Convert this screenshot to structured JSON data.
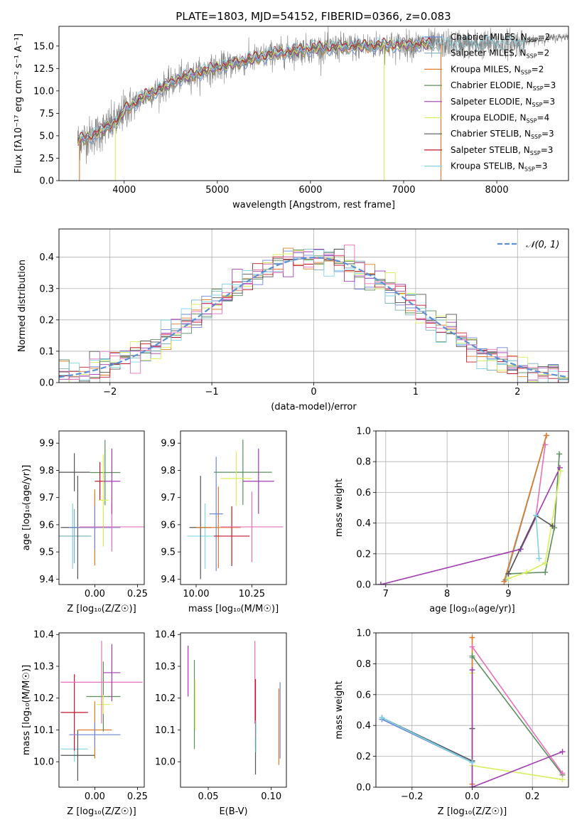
{
  "colors": {
    "Chabrier MILES": "#6f86d6",
    "Salpeter MILES": "#7fb0bd",
    "Kroupa MILES": "#e07b28",
    "Chabrier ELODIE": "#5a8f5c",
    "Salpeter ELODIE": "#a03ab0",
    "Kroupa ELODIE": "#d8ee5c",
    "Chabrier STELIB": "#555555",
    "Salpeter STELIB": "#c0182a",
    "Kroupa STELIB": "#7fd4e6",
    "pink": "#e870b8",
    "gray_spectrum": "#7f7f7f",
    "normal_curve": "#5b8fd6"
  },
  "chart_data": [
    {
      "id": "spectrum",
      "type": "line",
      "title": "PLATE=1803, MJD=54152, FIBERID=0366, z=0.083",
      "xlabel": "wavelength [Angstrom, rest frame]",
      "ylabel": "Flux [fλ10⁻¹⁷ erg cm⁻² s⁻¹ A⁻¹]",
      "xlim": [
        3300,
        8770
      ],
      "ylim": [
        0,
        17.2
      ],
      "xticks": [
        4000,
        5000,
        6000,
        7000,
        8000
      ],
      "yticks": [
        0.0,
        2.5,
        5.0,
        7.5,
        10.0,
        12.5,
        15.0
      ],
      "grid": false,
      "legend_position": "upper-right",
      "legend": [
        {
          "label": "Chabrier MILES, N",
          "sub": "SSP",
          "eq": "=2",
          "color": "#6f86d6"
        },
        {
          "label": "Salpeter MILES, N",
          "sub": "SSP",
          "eq": "=2",
          "color": "#7fb0bd"
        },
        {
          "label": "Kroupa MILES, N",
          "sub": "SSP",
          "eq": "=2",
          "color": "#e07b28"
        },
        {
          "label": "Chabrier ELODIE, N",
          "sub": "SSP",
          "eq": "=3",
          "color": "#5a8f5c"
        },
        {
          "label": "Salpeter ELODIE, N",
          "sub": "SSP",
          "eq": "=3",
          "color": "#a03ab0"
        },
        {
          "label": "Kroupa ELODIE, N",
          "sub": "SSP",
          "eq": "=4",
          "color": "#d8ee5c"
        },
        {
          "label": "Chabrier STELIB, N",
          "sub": "SSP",
          "eq": "=3",
          "color": "#555555"
        },
        {
          "label": "Salpeter STELIB, N",
          "sub": "SSP",
          "eq": "=3",
          "color": "#c0182a"
        },
        {
          "label": "Kroupa STELIB, N",
          "sub": "SSP",
          "eq": "=3",
          "color": "#7fd4e6"
        }
      ],
      "continuum": [
        [
          3500,
          4.5
        ],
        [
          3600,
          4.8
        ],
        [
          3700,
          5.2
        ],
        [
          3800,
          5.8
        ],
        [
          3900,
          6.5
        ],
        [
          3950,
          6.8
        ],
        [
          4000,
          7.9
        ],
        [
          4100,
          8.5
        ],
        [
          4200,
          9.3
        ],
        [
          4400,
          10.3
        ],
        [
          4600,
          11.4
        ],
        [
          4800,
          12.0
        ],
        [
          5000,
          12.6
        ],
        [
          5200,
          13.1
        ],
        [
          5400,
          13.6
        ],
        [
          5600,
          14.1
        ],
        [
          5800,
          14.4
        ],
        [
          6000,
          14.7
        ],
        [
          6200,
          14.8
        ],
        [
          6400,
          14.9
        ],
        [
          6600,
          15.0
        ],
        [
          6800,
          15.1
        ],
        [
          7000,
          15.1
        ],
        [
          7200,
          15.2
        ],
        [
          7400,
          15.2
        ],
        [
          7600,
          15.3
        ],
        [
          7800,
          15.2
        ],
        [
          8000,
          15.3
        ],
        [
          8200,
          15.4
        ],
        [
          8400,
          15.6
        ],
        [
          8600,
          15.9
        ],
        [
          8770,
          16.1
        ]
      ],
      "dips": [
        [
          3520,
          0
        ],
        [
          3905,
          0
        ],
        [
          6790,
          0
        ],
        [
          7400,
          0
        ]
      ]
    },
    {
      "id": "residuals",
      "type": "step",
      "xlabel": "(data-model)/error",
      "ylabel": "Normed distribution",
      "xlim": [
        -2.5,
        2.5
      ],
      "ylim": [
        0,
        0.49
      ],
      "xticks": [
        -2,
        -1,
        0,
        1,
        2
      ],
      "xticklabels": [
        "−2",
        "−1",
        "0",
        "1",
        "2"
      ],
      "yticks": [
        0.0,
        0.1,
        0.2,
        0.3,
        0.4
      ],
      "grid": true,
      "legend": [
        {
          "label": "𝒩(0, 1)",
          "color": "#5b8fd6",
          "style": "dashed"
        }
      ],
      "bin_width": 0.1,
      "series_note": "9 model histograms scattered around N(0,1)"
    },
    {
      "id": "age_vs_Z",
      "type": "errorbar",
      "xlabel": "Z [log₁₀(Z/Z☉)]",
      "ylabel": "age  [log₁₀(age/yr)]",
      "xlim": [
        -0.21,
        0.29
      ],
      "ylim": [
        9.38,
        9.945
      ],
      "xticks": [
        0.0,
        0.25
      ],
      "xticklabels": [
        "0.00",
        "0.25"
      ],
      "yticks": [
        9.4,
        9.5,
        9.6,
        9.7,
        9.8,
        9.9
      ],
      "points": [
        {
          "x": -0.13,
          "y": 9.558,
          "xerr": 0.09,
          "yerr": 0.12,
          "c": "#7fd4e6"
        },
        {
          "x": -0.12,
          "y": 9.558,
          "xerr": 0.1,
          "yerr": 0.1,
          "c": "#7fb0bd"
        },
        {
          "x": -0.1,
          "y": 9.59,
          "xerr": 0.1,
          "yerr": 0.19,
          "c": "#555555"
        },
        {
          "x": -0.12,
          "y": 9.793,
          "xerr": 0.09,
          "yerr": 0.07,
          "c": "#555555"
        },
        {
          "x": 0.0,
          "y": 9.59,
          "xerr": 0.1,
          "yerr": 0.14,
          "c": "#e07b28"
        },
        {
          "x": 0.0,
          "y": 9.59,
          "xerr": 0.15,
          "yerr": 0.08,
          "c": "#6f86d6"
        },
        {
          "x": 0.06,
          "y": 9.792,
          "xerr": 0.09,
          "yerr": 0.12,
          "c": "#5a8f5c"
        },
        {
          "x": 0.03,
          "y": 9.76,
          "xerr": 0.03,
          "yerr": 0.07,
          "c": "#c0182a"
        },
        {
          "x": 0.05,
          "y": 9.69,
          "xerr": 0.03,
          "yerr": 0.17,
          "c": "#d8ee5c"
        },
        {
          "x": 0.1,
          "y": 9.592,
          "xerr": 0.19,
          "yerr": 0.09,
          "c": "#e870b8"
        },
        {
          "x": 0.1,
          "y": 9.76,
          "xerr": 0.05,
          "yerr": 0.12,
          "c": "#a03ab0"
        }
      ]
    },
    {
      "id": "age_vs_mass",
      "type": "errorbar",
      "xlabel": "mass [log₁₀(M/M☉)]",
      "ylabel": "",
      "xlim": [
        9.93,
        10.405
      ],
      "ylim": [
        9.38,
        9.945
      ],
      "xticks": [
        10.0,
        10.25
      ],
      "xticklabels": [
        "10.00",
        "10.25"
      ],
      "yticks": [
        9.4,
        9.5,
        9.6,
        9.7,
        9.8,
        9.9
      ],
      "points": [
        {
          "x": 10.04,
          "y": 9.558,
          "xerr": 0.08,
          "yerr": 0.12,
          "c": "#7fd4e6"
        },
        {
          "x": 10.02,
          "y": 9.59,
          "xerr": 0.05,
          "yerr": 0.19,
          "c": "#555555"
        },
        {
          "x": 10.1,
          "y": 9.59,
          "xerr": 0.1,
          "yerr": 0.15,
          "c": "#e07b28"
        },
        {
          "x": 10.09,
          "y": 9.64,
          "xerr": 0.03,
          "yerr": 0.21,
          "c": "#6f86d6"
        },
        {
          "x": 10.21,
          "y": 9.793,
          "xerr": 0.13,
          "yerr": 0.12,
          "c": "#5a8f5c"
        },
        {
          "x": 10.16,
          "y": 9.558,
          "xerr": 0.08,
          "yerr": 0.11,
          "c": "#c0182a"
        },
        {
          "x": 10.18,
          "y": 9.77,
          "xerr": 0.07,
          "yerr": 0.1,
          "c": "#d8ee5c"
        },
        {
          "x": 10.25,
          "y": 9.592,
          "xerr": 0.14,
          "yerr": 0.13,
          "c": "#e870b8"
        },
        {
          "x": 10.28,
          "y": 9.76,
          "xerr": 0.07,
          "yerr": 0.12,
          "c": "#a03ab0"
        }
      ]
    },
    {
      "id": "weight_vs_age",
      "type": "line",
      "xlabel": "age  [log₁₀(age/yr)]",
      "ylabel": "mass weight",
      "xlim": [
        6.84,
        9.98
      ],
      "ylim": [
        0,
        1.0
      ],
      "xticks": [
        7,
        8,
        9
      ],
      "yticks": [
        0.0,
        0.2,
        0.4,
        0.6,
        0.8,
        1.0
      ],
      "grid": true,
      "series": [
        {
          "c": "#6f86d6",
          "pts": [
            [
              8.95,
              0.03
            ],
            [
              9.62,
              0.97
            ]
          ]
        },
        {
          "c": "#7fb0bd",
          "pts": [
            [
              8.95,
              0.03
            ],
            [
              9.62,
              0.97
            ]
          ]
        },
        {
          "c": "#e07b28",
          "pts": [
            [
              8.93,
              0.02
            ],
            [
              9.62,
              0.97
            ]
          ]
        },
        {
          "c": "#e870b8",
          "pts": [
            [
              9.0,
              0.07
            ],
            [
              9.45,
              0.45
            ],
            [
              9.6,
              0.91
            ]
          ]
        },
        {
          "c": "#5a8f5c",
          "pts": [
            [
              9.0,
              0.07
            ],
            [
              9.6,
              0.08
            ],
            [
              9.75,
              0.37
            ],
            [
              9.83,
              0.85
            ]
          ]
        },
        {
          "c": "#a03ab0",
          "pts": [
            [
              6.92,
              0.0
            ],
            [
              9.2,
              0.23
            ],
            [
              9.84,
              0.76
            ]
          ]
        },
        {
          "c": "#d8ee5c",
          "pts": [
            [
              9.0,
              0.04
            ],
            [
              9.3,
              0.08
            ],
            [
              9.6,
              0.14
            ],
            [
              9.85,
              0.74
            ]
          ]
        },
        {
          "c": "#555555",
          "pts": [
            [
              9.0,
              0.07
            ],
            [
              9.45,
              0.45
            ],
            [
              9.72,
              0.38
            ]
          ]
        },
        {
          "c": "#7fd4e6",
          "pts": [
            [
              9.5,
              0.17
            ],
            [
              9.45,
              0.45
            ]
          ]
        }
      ]
    },
    {
      "id": "mass_vs_Z",
      "type": "errorbar",
      "xlabel": "Z [log₁₀(Z/Z☉)]",
      "ylabel": "mass [log₁₀(M/M☉)]",
      "xlim": [
        -0.21,
        0.29
      ],
      "ylim": [
        9.92,
        10.405
      ],
      "xticks": [
        0.0,
        0.25
      ],
      "xticklabels": [
        "0.00",
        "0.25"
      ],
      "yticks": [
        10.0,
        10.1,
        10.2,
        10.3,
        10.4
      ],
      "points": [
        {
          "x": -0.12,
          "y": 10.04,
          "xerr": 0.08,
          "yerr": 0.04,
          "c": "#7fd4e6"
        },
        {
          "x": -0.1,
          "y": 10.02,
          "xerr": 0.1,
          "yerr": 0.08,
          "c": "#555555"
        },
        {
          "x": -0.12,
          "y": 10.155,
          "xerr": 0.08,
          "yerr": 0.12,
          "c": "#c0182a"
        },
        {
          "x": 0.0,
          "y": 10.1,
          "xerr": 0.1,
          "yerr": 0.09,
          "c": "#e07b28"
        },
        {
          "x": 0.0,
          "y": 10.085,
          "xerr": 0.15,
          "yerr": 0.04,
          "c": "#6f86d6"
        },
        {
          "x": 0.05,
          "y": 10.205,
          "xerr": 0.1,
          "yerr": 0.11,
          "c": "#5a8f5c"
        },
        {
          "x": 0.05,
          "y": 10.18,
          "xerr": 0.04,
          "yerr": 0.03,
          "c": "#d8ee5c"
        },
        {
          "x": 0.04,
          "y": 10.25,
          "xerr": 0.24,
          "yerr": 0.13,
          "c": "#e870b8"
        },
        {
          "x": 0.1,
          "y": 10.28,
          "xerr": 0.05,
          "yerr": 0.09,
          "c": "#a03ab0"
        }
      ]
    },
    {
      "id": "mass_vs_EBV",
      "type": "errorbar",
      "xlabel": "E(B-V)",
      "ylabel": "",
      "xlim": [
        0.028,
        0.112
      ],
      "ylim": [
        9.92,
        10.405
      ],
      "xticks": [
        0.05,
        0.1
      ],
      "xticklabels": [
        "0.05",
        "0.10"
      ],
      "yticks": [
        10.0,
        10.1,
        10.2,
        10.3,
        10.4
      ],
      "points": [
        {
          "x": 0.034,
          "y": 10.285,
          "xerr": 0,
          "yerr": 0.08,
          "c": "#a03ab0"
        },
        {
          "x": 0.039,
          "y": 10.18,
          "xerr": 0,
          "yerr": 0.14,
          "c": "#5a8f5c"
        },
        {
          "x": 0.0395,
          "y": 10.18,
          "xerr": 0,
          "yerr": 0.08,
          "c": "#d8ee5c"
        },
        {
          "x": 0.087,
          "y": 10.25,
          "xerr": 0,
          "yerr": 0.13,
          "c": "#e870b8"
        },
        {
          "x": 0.0875,
          "y": 10.15,
          "xerr": 0,
          "yerr": 0.11,
          "c": "#c0182a"
        },
        {
          "x": 0.0875,
          "y": 10.02,
          "xerr": 0,
          "yerr": 0.06,
          "c": "#555555"
        },
        {
          "x": 0.0878,
          "y": 10.08,
          "xerr": 0,
          "yerr": 0.05,
          "c": "#7fd4e6"
        },
        {
          "x": 0.106,
          "y": 10.11,
          "xerr": 0,
          "yerr": 0.12,
          "c": "#e07b28"
        },
        {
          "x": 0.107,
          "y": 10.13,
          "xerr": 0,
          "yerr": 0.12,
          "c": "#6f86d6"
        }
      ]
    },
    {
      "id": "weight_vs_Z",
      "type": "line",
      "xlabel": "Z [log₁₀(Z/Z☉)]",
      "ylabel": "mass weight",
      "xlim": [
        -0.32,
        0.32
      ],
      "ylim": [
        0,
        1.0
      ],
      "xticks": [
        -0.2,
        0.0,
        0.2
      ],
      "xticklabels": [
        "−0.2",
        "0.0",
        "0.2"
      ],
      "yticks": [
        0.0,
        0.2,
        0.4,
        0.6,
        0.8,
        1.0
      ],
      "grid": true,
      "series": [
        {
          "c": "#7fb0bd",
          "pts": [
            [
              -0.3,
              0.45
            ],
            [
              0.0,
              0.17
            ],
            [
              0.0,
              0.38
            ],
            [
              0.0,
              0.84
            ]
          ]
        },
        {
          "c": "#6f86d6",
          "pts": [
            [
              -0.3,
              0.44
            ],
            [
              0.0,
              0.16
            ]
          ]
        },
        {
          "c": "#555555",
          "pts": [
            [
              -0.3,
              0.45
            ],
            [
              0.0,
              0.17
            ],
            [
              0.0,
              0.38
            ]
          ]
        },
        {
          "c": "#e07b28",
          "pts": [
            [
              0.0,
              0.02
            ],
            [
              0.0,
              0.97
            ]
          ]
        },
        {
          "c": "#5a8f5c",
          "pts": [
            [
              0.0,
              0.85
            ],
            [
              0.3,
              0.08
            ]
          ]
        },
        {
          "c": "#e870b8",
          "pts": [
            [
              0.0,
              0.91
            ],
            [
              0.3,
              0.09
            ]
          ]
        },
        {
          "c": "#d8ee5c",
          "pts": [
            [
              0.0,
              0.74
            ],
            [
              0.0,
              0.14
            ],
            [
              0.3,
              0.05
            ]
          ]
        },
        {
          "c": "#a03ab0",
          "pts": [
            [
              0.0,
              0.76
            ],
            [
              0.0,
              0.0
            ],
            [
              0.3,
              0.23
            ]
          ]
        },
        {
          "c": "#7fd4e6",
          "pts": [
            [
              -0.3,
              0.45
            ],
            [
              0.0,
              0.16
            ]
          ]
        }
      ]
    }
  ]
}
